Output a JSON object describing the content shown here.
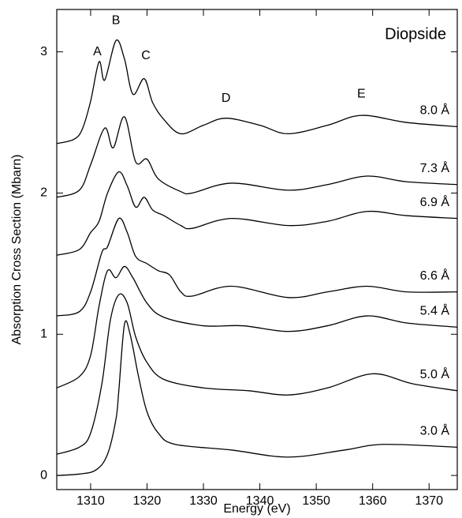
{
  "chart_data": {
    "type": "line",
    "title": "Diopside",
    "x_label": "Energy (eV)",
    "y_label": "Absorption Cross Section (Mbarn)",
    "xlim": [
      1304,
      1375
    ],
    "ylim": [
      -0.1,
      3.3
    ],
    "xticks": [
      1310,
      1320,
      1330,
      1340,
      1350,
      1360,
      1370
    ],
    "yticks": [
      0,
      1,
      2,
      3
    ],
    "annotations": [
      "A",
      "B",
      "C",
      "D",
      "E"
    ],
    "series": [
      {
        "name": "3.0 Å",
        "color": "#000000",
        "x": [
          1304,
          1308,
          1311,
          1313,
          1314.5,
          1315,
          1316,
          1317,
          1318.5,
          1320,
          1322,
          1325,
          1335,
          1345,
          1355,
          1362,
          1375
        ],
        "values": [
          0,
          0.01,
          0.04,
          0.15,
          0.4,
          0.6,
          1.07,
          1.0,
          0.7,
          0.45,
          0.3,
          0.22,
          0.18,
          0.13,
          0.18,
          0.22,
          0.2
        ]
      },
      {
        "name": "5.0 Å",
        "color": "#000000",
        "x": [
          1304,
          1308,
          1310,
          1312,
          1313.5,
          1315,
          1316.5,
          1318,
          1320,
          1323,
          1330,
          1338,
          1345,
          1352,
          1360,
          1367,
          1375
        ],
        "values": [
          0.15,
          0.2,
          0.3,
          0.65,
          1.1,
          1.28,
          1.22,
          0.98,
          0.8,
          0.68,
          0.62,
          0.6,
          0.57,
          0.62,
          0.72,
          0.65,
          0.6
        ]
      },
      {
        "name": "5.4 Å",
        "color": "#000000",
        "x": [
          1304,
          1308,
          1310,
          1311.5,
          1313,
          1314.5,
          1316,
          1317.5,
          1320,
          1323,
          1330,
          1337,
          1345,
          1352,
          1359,
          1366,
          1375
        ],
        "values": [
          0.62,
          0.7,
          0.85,
          1.2,
          1.45,
          1.4,
          1.48,
          1.4,
          1.22,
          1.12,
          1.06,
          1.06,
          1.02,
          1.06,
          1.13,
          1.08,
          1.05
        ]
      },
      {
        "name": "6.6 Å",
        "color": "#000000",
        "x": [
          1304,
          1308,
          1310,
          1312,
          1313,
          1315,
          1316.5,
          1318,
          1320,
          1322,
          1324,
          1326,
          1328,
          1335,
          1345,
          1352,
          1359,
          1366,
          1375
        ],
        "values": [
          1.13,
          1.16,
          1.3,
          1.58,
          1.62,
          1.82,
          1.72,
          1.55,
          1.5,
          1.45,
          1.42,
          1.3,
          1.27,
          1.34,
          1.26,
          1.3,
          1.34,
          1.3,
          1.3
        ]
      },
      {
        "name": "6.9 Å",
        "color": "#000000",
        "x": [
          1304,
          1308,
          1310,
          1311.5,
          1313,
          1315,
          1316.5,
          1318,
          1319.5,
          1321,
          1323,
          1326,
          1328,
          1335,
          1345,
          1352,
          1359,
          1366,
          1375
        ],
        "values": [
          1.56,
          1.6,
          1.72,
          1.8,
          2.0,
          2.15,
          2.05,
          1.9,
          1.97,
          1.88,
          1.84,
          1.77,
          1.75,
          1.82,
          1.77,
          1.8,
          1.87,
          1.84,
          1.82
        ]
      },
      {
        "name": "7.3 Å",
        "color": "#000000",
        "x": [
          1304,
          1308,
          1310,
          1312.5,
          1314,
          1316,
          1318,
          1320,
          1322,
          1326,
          1328,
          1335,
          1345,
          1352,
          1359,
          1366,
          1375
        ],
        "values": [
          1.97,
          2.02,
          2.2,
          2.46,
          2.32,
          2.54,
          2.22,
          2.24,
          2.1,
          2.01,
          2.0,
          2.07,
          2.02,
          2.06,
          2.12,
          2.08,
          2.06
        ]
      },
      {
        "name": "8.0 Å",
        "color": "#000000",
        "x": [
          1304,
          1307,
          1308.5,
          1310,
          1311.5,
          1312.5,
          1314.5,
          1316,
          1317.5,
          1319.5,
          1321,
          1323,
          1326,
          1330,
          1334,
          1340,
          1345,
          1352,
          1358,
          1366,
          1375
        ],
        "values": [
          2.35,
          2.38,
          2.45,
          2.65,
          2.93,
          2.8,
          3.08,
          2.95,
          2.7,
          2.81,
          2.64,
          2.52,
          2.42,
          2.48,
          2.53,
          2.48,
          2.42,
          2.48,
          2.55,
          2.5,
          2.47
        ]
      }
    ]
  }
}
